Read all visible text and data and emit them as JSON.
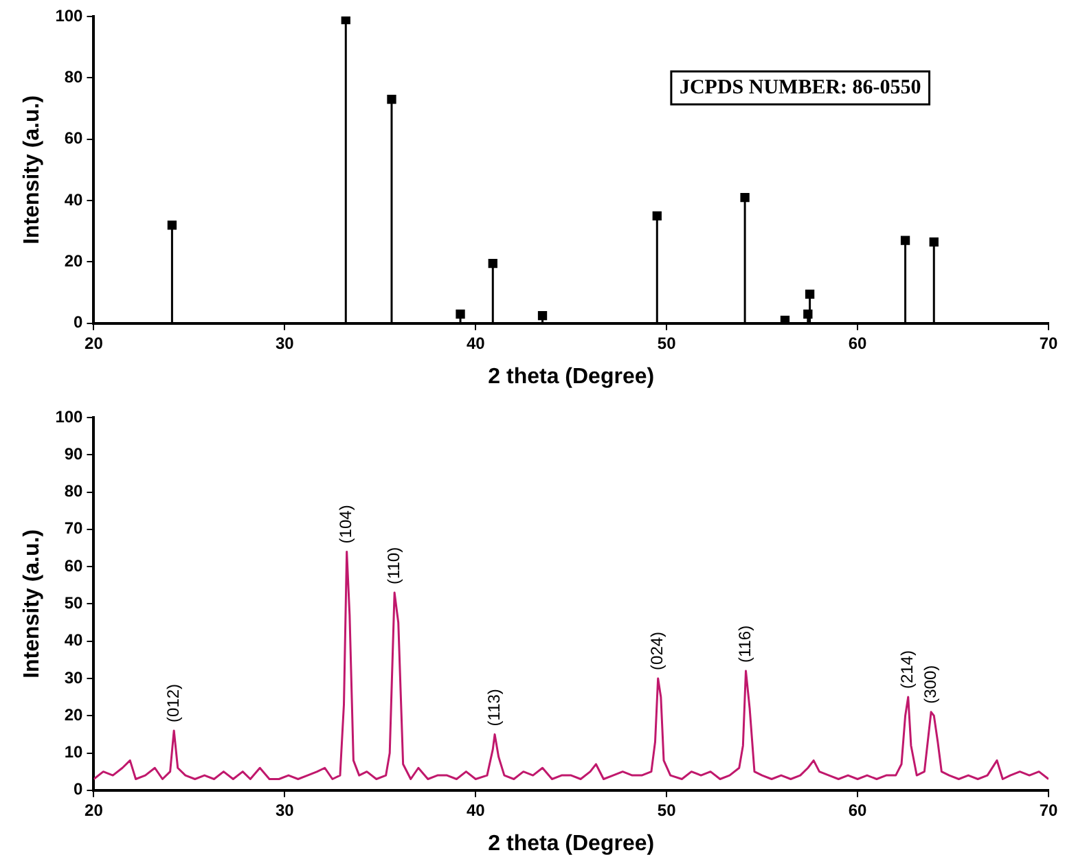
{
  "chart_data": [
    {
      "type": "lollipop",
      "xlabel": "2 theta (Degree)",
      "ylabel": "Intensity (a.u.)",
      "marker": "square",
      "grid": false,
      "legend": false,
      "annotations": [
        "JCPDS NUMBER: 86-0550"
      ],
      "xlim": [
        20,
        70
      ],
      "xticks": [
        20,
        30,
        40,
        50,
        60,
        70
      ],
      "ylim": [
        0,
        100
      ],
      "yticks": [
        0,
        20,
        40,
        60,
        80,
        100
      ],
      "series": [
        {
          "color": "#000000",
          "x": [
            24.1,
            33.2,
            35.6,
            39.2,
            40.9,
            43.5,
            49.5,
            54.1,
            56.2,
            57.4,
            57.5,
            62.5,
            64.0
          ],
          "values": [
            32,
            99,
            73,
            3,
            19.5,
            2.5,
            35,
            41,
            1,
            3,
            9.5,
            27,
            26.5
          ]
        }
      ]
    },
    {
      "type": "line",
      "xlabel": "2 theta (Degree)",
      "ylabel": "Intensity (a.u.)",
      "marker": "none",
      "line_style": "solid",
      "grid": false,
      "legend": false,
      "xlim": [
        20,
        70
      ],
      "xticks": [
        20,
        30,
        40,
        50,
        60,
        70
      ],
      "ylim": [
        0,
        100
      ],
      "yticks": [
        0,
        10,
        20,
        30,
        40,
        50,
        60,
        70,
        80,
        90,
        100
      ],
      "annotations": [
        {
          "text": "(012)",
          "x": 24.2,
          "y": 16
        },
        {
          "text": "(104)",
          "x": 33.25,
          "y": 64
        },
        {
          "text": "(110)",
          "x": 35.75,
          "y": 53
        },
        {
          "text": "(113)",
          "x": 41.0,
          "y": 15
        },
        {
          "text": "(024)",
          "x": 49.55,
          "y": 30
        },
        {
          "text": "(116)",
          "x": 54.15,
          "y": 32
        },
        {
          "text": "(214)",
          "x": 62.65,
          "y": 25
        },
        {
          "text": "(300)",
          "x": 63.85,
          "y": 21
        }
      ],
      "series": [
        {
          "color": "#c0186c",
          "x": [
            20,
            20.5,
            21,
            21.5,
            21.9,
            22.2,
            22.7,
            23.2,
            23.6,
            24.0,
            24.2,
            24.4,
            24.8,
            25.3,
            25.8,
            26.3,
            26.8,
            27.3,
            27.8,
            28.2,
            28.7,
            29.2,
            29.7,
            30.2,
            30.7,
            31.2,
            31.7,
            32.1,
            32.5,
            32.9,
            33.1,
            33.25,
            33.4,
            33.6,
            33.9,
            34.3,
            34.8,
            35.3,
            35.5,
            35.75,
            35.95,
            36.2,
            36.6,
            37.0,
            37.5,
            38.0,
            38.5,
            39.0,
            39.5,
            40.0,
            40.6,
            40.9,
            41.0,
            41.2,
            41.5,
            42.0,
            42.5,
            43.0,
            43.5,
            44.0,
            44.5,
            45.0,
            45.5,
            46.0,
            46.3,
            46.7,
            47.2,
            47.7,
            48.2,
            48.7,
            49.2,
            49.4,
            49.55,
            49.7,
            49.85,
            50.2,
            50.8,
            51.3,
            51.8,
            52.3,
            52.8,
            53.3,
            53.8,
            54.0,
            54.15,
            54.35,
            54.6,
            55.0,
            55.5,
            56.0,
            56.5,
            57.0,
            57.4,
            57.7,
            58.0,
            58.5,
            59.0,
            59.5,
            60.0,
            60.5,
            61.0,
            61.5,
            62.0,
            62.3,
            62.5,
            62.65,
            62.8,
            63.1,
            63.5,
            63.85,
            64.0,
            64.2,
            64.4,
            64.8,
            65.3,
            65.8,
            66.3,
            66.8,
            67.3,
            67.6,
            68.0,
            68.5,
            69.0,
            69.5,
            70
          ],
          "values": [
            3,
            5,
            4,
            6,
            8,
            3,
            4,
            6,
            3,
            5,
            16,
            6,
            4,
            3,
            4,
            3,
            5,
            3,
            5,
            3,
            6,
            3,
            3,
            4,
            3,
            4,
            5,
            6,
            3,
            4,
            23,
            64,
            47,
            8,
            4,
            5,
            3,
            4,
            10,
            53,
            45,
            7,
            3,
            6,
            3,
            4,
            4,
            3,
            5,
            3,
            4,
            11,
            15,
            9,
            4,
            3,
            5,
            4,
            6,
            3,
            4,
            4,
            3,
            5,
            7,
            3,
            4,
            5,
            4,
            4,
            5,
            13,
            30,
            25,
            8,
            4,
            3,
            5,
            4,
            5,
            3,
            4,
            6,
            12,
            32,
            22,
            5,
            4,
            3,
            4,
            3,
            4,
            6,
            8,
            5,
            4,
            3,
            4,
            3,
            4,
            3,
            4,
            4,
            7,
            20,
            25,
            12,
            4,
            5,
            21,
            20,
            13,
            5,
            4,
            3,
            4,
            3,
            4,
            8,
            3,
            4,
            5,
            4,
            5,
            3
          ]
        }
      ]
    }
  ]
}
